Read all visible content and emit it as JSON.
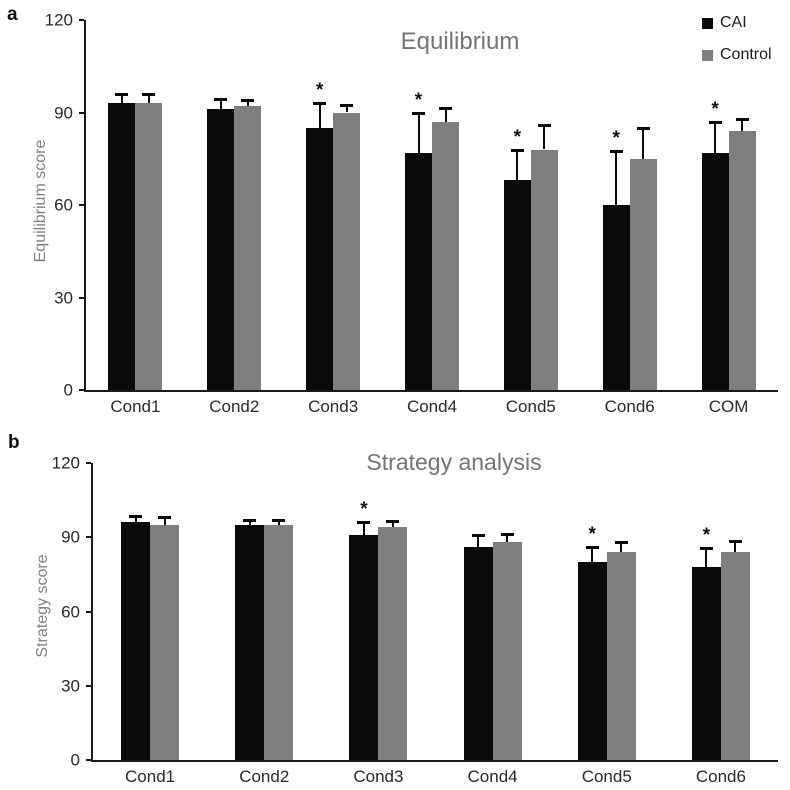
{
  "figure_description": "Two-panel grouped bar chart comparing CAI vs Control groups",
  "colors": {
    "cai_bar": "#0a0a0a",
    "control_bar": "#7f7f7f",
    "title_text": "#757575",
    "axis_title_text": "#828282",
    "tick_text": "#2b2b2b",
    "axis_line": "#1a1a1a"
  },
  "chart_data": [
    {
      "type": "bar",
      "panel_label": "a",
      "title": "Equilibrium",
      "ylabel": "Equilibrium score",
      "xlabel": "",
      "ylim": [
        0,
        120
      ],
      "yticks": [
        0,
        30,
        60,
        90,
        120
      ],
      "grid": false,
      "categories": [
        "Cond1",
        "Cond2",
        "Cond3",
        "Cond4",
        "Cond5",
        "Cond6",
        "COM"
      ],
      "series": [
        {
          "name": "CAI",
          "color": "#0a0a0a",
          "values": [
            93,
            91,
            85,
            77,
            68,
            60,
            77
          ],
          "errors_up": [
            3,
            3.5,
            8,
            13,
            10,
            17.5,
            10
          ],
          "significant": [
            false,
            false,
            true,
            true,
            true,
            true,
            true
          ]
        },
        {
          "name": "Control",
          "color": "#7f7f7f",
          "values": [
            93,
            92,
            90,
            87,
            78,
            75,
            84
          ],
          "errors_up": [
            3,
            2,
            2.5,
            4.5,
            8,
            10,
            4
          ],
          "significant": [
            false,
            false,
            false,
            false,
            false,
            false,
            false
          ]
        }
      ],
      "legend": {
        "position": "top-right",
        "entries": [
          {
            "label": "CAI",
            "color": "#0a0a0a"
          },
          {
            "label": "Control",
            "color": "#7f7f7f"
          }
        ]
      }
    },
    {
      "type": "bar",
      "panel_label": "b",
      "title": "Strategy analysis",
      "ylabel": "Strategy score",
      "xlabel": "",
      "ylim": [
        0,
        120
      ],
      "yticks": [
        0,
        30,
        60,
        90,
        120
      ],
      "grid": false,
      "categories": [
        "Cond1",
        "Cond2",
        "Cond3",
        "Cond4",
        "Cond5",
        "Cond6"
      ],
      "series": [
        {
          "name": "CAI",
          "color": "#0a0a0a",
          "values": [
            96,
            95,
            91,
            86,
            80,
            78
          ],
          "errors_up": [
            2.5,
            2,
            5,
            5,
            6,
            7.5
          ],
          "significant": [
            false,
            false,
            true,
            false,
            true,
            true
          ]
        },
        {
          "name": "Control",
          "color": "#7f7f7f",
          "values": [
            95,
            95,
            94,
            88,
            84,
            84
          ],
          "errors_up": [
            3,
            2,
            2.5,
            3.5,
            4,
            4.5
          ],
          "significant": [
            false,
            false,
            false,
            false,
            false,
            false
          ]
        }
      ],
      "legend": null
    }
  ]
}
